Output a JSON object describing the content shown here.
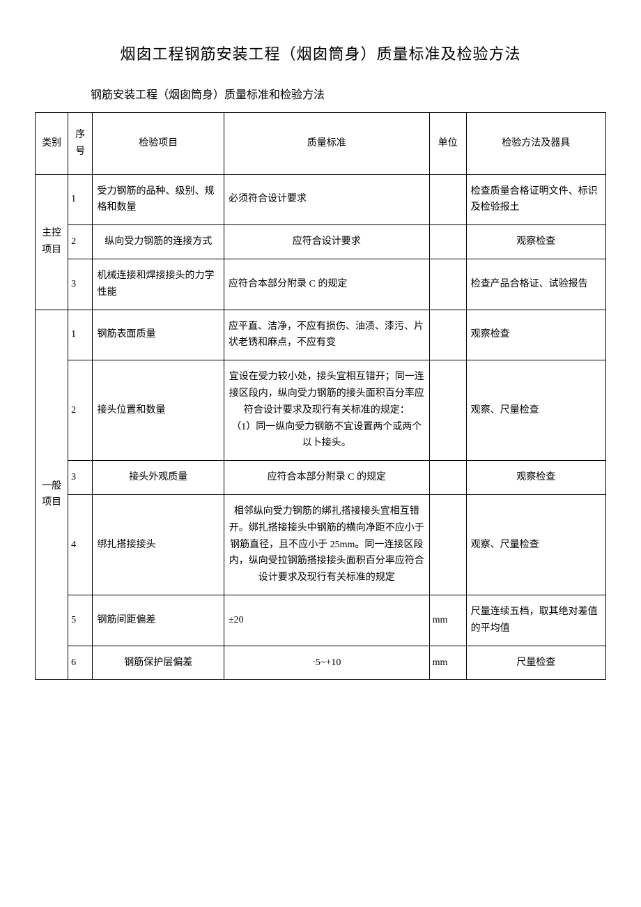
{
  "title": "烟囱工程钢筋安装工程（烟囱筒身）质量标准及检验方法",
  "subtitle": "钢筋安装工程（烟囱筒身）质量标准和检验方法",
  "headers": {
    "category": "类别",
    "seq": "序号",
    "item": "检验项目",
    "standard": "质量标准",
    "unit": "单位",
    "method": "检验方法及器具"
  },
  "categories": {
    "main": "主控项目",
    "general": "一般项目"
  },
  "rows": {
    "main": [
      {
        "seq": "1",
        "item": "受力钢筋的品种、级别、规格和数量",
        "standard": "必须符合设计要求",
        "unit": "",
        "method": "检查质量合格证明文件、标识及检验报土",
        "item_align": "left",
        "standard_align": "left",
        "method_align": "left"
      },
      {
        "seq": "2",
        "item": "纵向受力钢筋的连接方式",
        "standard": "应符合设计要求",
        "unit": "",
        "method": "观察检查",
        "item_align": "center",
        "standard_align": "center",
        "method_align": "center"
      },
      {
        "seq": "3",
        "item": "机械连接和焊接接头的力学性能",
        "standard": "应符合本部分附录 C 的规定",
        "unit": "",
        "method": "检查产品合格证、试验报告",
        "item_align": "left",
        "standard_align": "left",
        "method_align": "left"
      }
    ],
    "general": [
      {
        "seq": "1",
        "item": "钢筋表面质量",
        "standard": "应平直、洁净，不应有损伤、油渍、漆污、片状老锈和麻点，不应有变",
        "unit": "",
        "method": "观察检查",
        "item_align": "left",
        "standard_align": "left",
        "method_align": "left"
      },
      {
        "seq": "2",
        "item": "接头位置和数量",
        "standard": "宜设在受力较小处，接头宜相互错开；同一连接区段内，纵向受力钢筋的接头面积百分率应符合设计要求及现行有关标准的规定：\n（1）同一纵向受力钢筋不宜设置两个或两个以卜接头。",
        "unit": "",
        "method": "观察、尺量检查",
        "item_align": "left",
        "standard_align": "center",
        "method_align": "left"
      },
      {
        "seq": "3",
        "item": "接头外观质量",
        "standard": "应符合本部分附录 C 的规定",
        "unit": "",
        "method": "观察检查",
        "item_align": "center",
        "standard_align": "center",
        "method_align": "center"
      },
      {
        "seq": "4",
        "item": "绑扎搭接接头",
        "standard": "相邻纵向受力钢筋的绑扎搭接接头宜相互错开。绑扎搭接接头中钢筋的横向净距不应小于钢筋直径，且不应小于 25mm。同一连接区段内，纵向受拉钢筋搭接接头面积百分率应符合设计要求及现行有关标准的规定",
        "unit": "",
        "method": "观察、尺量检查",
        "item_align": "left",
        "standard_align": "center",
        "method_align": "left"
      },
      {
        "seq": "5",
        "item": "钢筋间距偏差",
        "standard": "±20",
        "unit": "mm",
        "method": "尺量连续五档，取其绝对差值的平均值",
        "item_align": "left",
        "standard_align": "left",
        "method_align": "left"
      },
      {
        "seq": "6",
        "item": "钢筋保护层偏差",
        "standard": "·5~+10",
        "unit": "mm",
        "method": "尺量检查",
        "item_align": "center",
        "standard_align": "center",
        "method_align": "center"
      }
    ]
  }
}
